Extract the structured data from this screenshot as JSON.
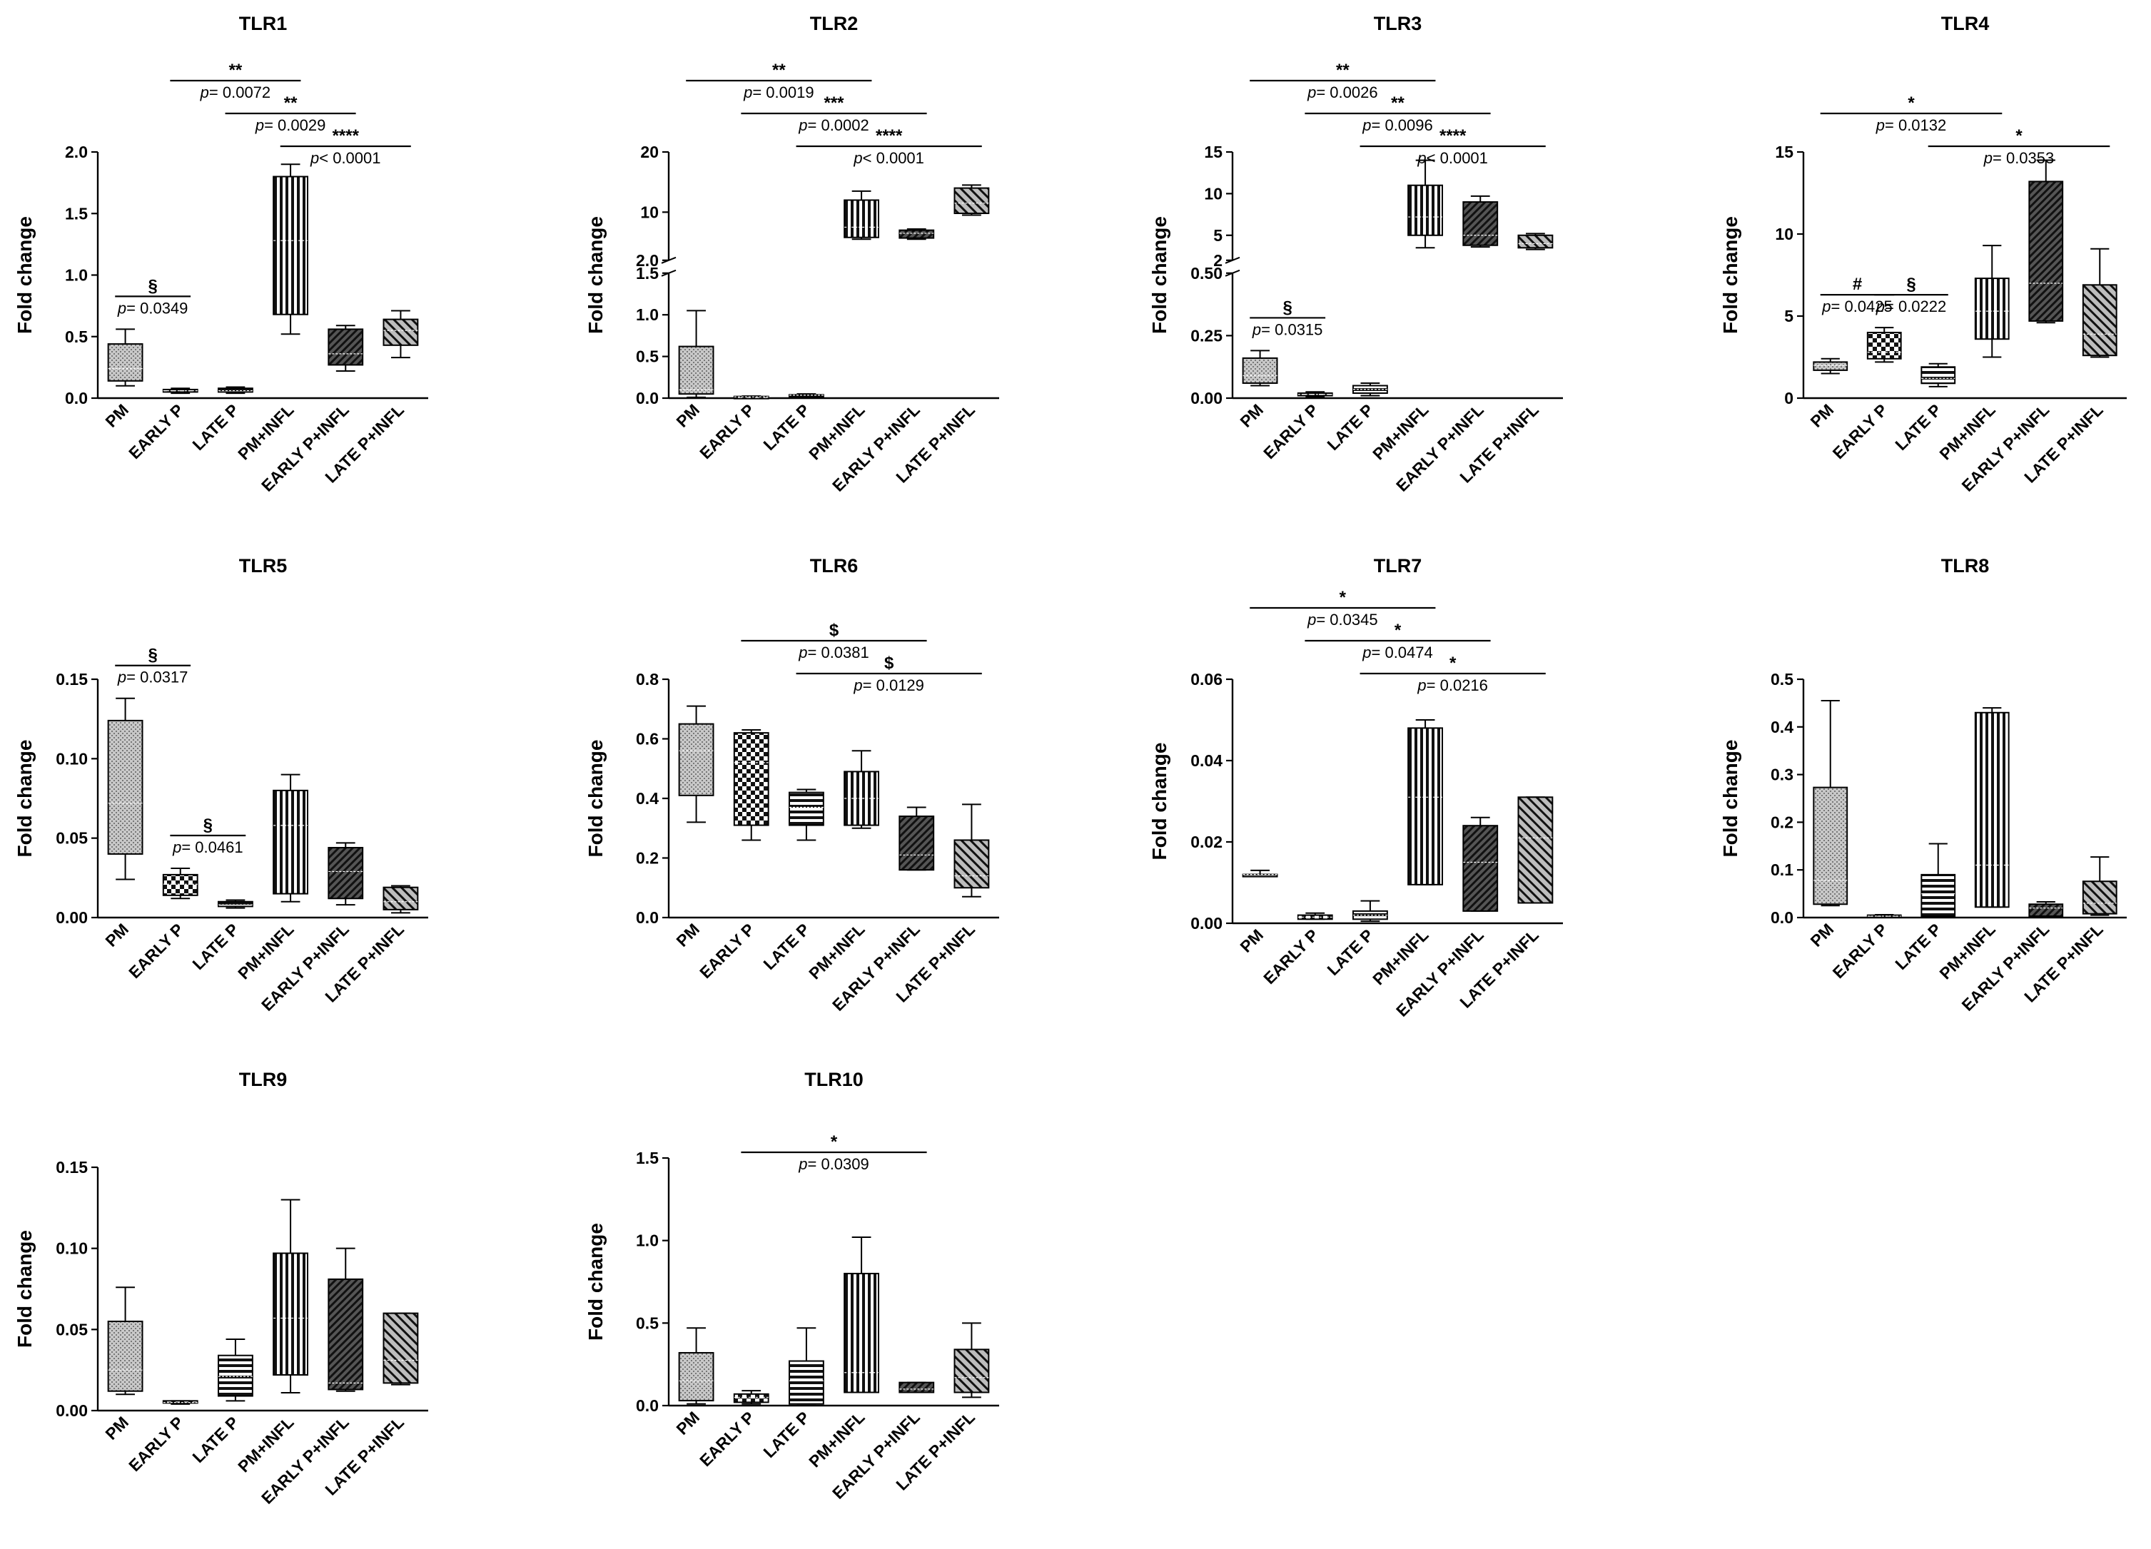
{
  "figure": {
    "y_axis_label": "Fold change",
    "p_prefix": "p"
  },
  "colors": {
    "ink": "#000000",
    "box_fill_light": "#c8c8c8",
    "box_fill_dark": "#555555"
  },
  "chart_data": [
    {
      "id": "TLR1",
      "type": "box",
      "title": "TLR1",
      "ylabel": "Fold change",
      "ylim": [
        0,
        2.0
      ],
      "yticks": [
        "0.0",
        "0.5",
        "1.0",
        "1.5",
        "2.0"
      ],
      "categories": [
        "PM",
        "EARLY P",
        "LATE P",
        "PM+INFL",
        "EARLY P+INFL",
        "LATE P+INFL"
      ],
      "boxes": [
        {
          "min": 0.1,
          "q1": 0.14,
          "median": 0.24,
          "q3": 0.44,
          "max": 0.56
        },
        {
          "min": 0.04,
          "q1": 0.05,
          "median": 0.06,
          "q3": 0.07,
          "max": 0.08
        },
        {
          "min": 0.04,
          "q1": 0.05,
          "median": 0.06,
          "q3": 0.08,
          "max": 0.09
        },
        {
          "min": 0.52,
          "q1": 0.68,
          "median": 1.28,
          "q3": 1.8,
          "max": 1.9
        },
        {
          "min": 0.22,
          "q1": 0.27,
          "median": 0.36,
          "q3": 0.56,
          "max": 0.59
        },
        {
          "min": 0.33,
          "q1": 0.43,
          "median": 0.55,
          "q3": 0.64,
          "max": 0.71
        }
      ],
      "comparisons": [
        {
          "from": 0,
          "to": 1,
          "symbol": "§",
          "p": "= 0.0349"
        },
        {
          "from": 1,
          "to": 3,
          "symbol": "**",
          "p": "= 0.0072"
        },
        {
          "from": 2,
          "to": 4,
          "symbol": "**",
          "p": "= 0.0029"
        },
        {
          "from": 3,
          "to": 5,
          "symbol": "****",
          "p": "< 0.0001"
        }
      ]
    },
    {
      "id": "TLR2",
      "type": "box",
      "title": "TLR2",
      "ylabel": "Fold change",
      "broken_axis": true,
      "ylim_lower": [
        0,
        1.5
      ],
      "yticks_lower": [
        "0.0",
        "0.5",
        "1.0",
        "1.5"
      ],
      "ylim_upper": [
        2.0,
        20
      ],
      "yticks_upper": [
        "2.0",
        "10",
        "20"
      ],
      "categories": [
        "PM",
        "EARLY P",
        "LATE P",
        "PM+INFL",
        "EARLY P+INFL",
        "LATE P+INFL"
      ],
      "boxes": [
        {
          "min": 0.01,
          "q1": 0.05,
          "median": 0.1,
          "q3": 0.62,
          "max": 1.05
        },
        {
          "min": 0.005,
          "q1": 0.01,
          "median": 0.015,
          "q3": 0.02,
          "max": 0.025
        },
        {
          "min": 0.02,
          "q1": 0.03,
          "median": 0.035,
          "q3": 0.04,
          "max": 0.05
        },
        {
          "min": 5.5,
          "q1": 5.8,
          "median": 7.5,
          "q3": 12.0,
          "max": 13.5
        },
        {
          "min": 5.5,
          "q1": 5.7,
          "median": 6.5,
          "q3": 7.0,
          "max": 7.2
        },
        {
          "min": 9.5,
          "q1": 9.8,
          "median": 11.5,
          "q3": 14.0,
          "max": 14.5
        }
      ],
      "comparisons": [
        {
          "from": 0,
          "to": 3,
          "symbol": "**",
          "p": "= 0.0019"
        },
        {
          "from": 1,
          "to": 4,
          "symbol": "***",
          "p": "= 0.0002"
        },
        {
          "from": 2,
          "to": 5,
          "symbol": "****",
          "p": "< 0.0001"
        }
      ]
    },
    {
      "id": "TLR3",
      "type": "box",
      "title": "TLR3",
      "ylabel": "Fold change",
      "broken_axis": true,
      "ylim_lower": [
        0,
        0.5
      ],
      "yticks_lower": [
        "0.00",
        "0.25",
        "0.50"
      ],
      "ylim_upper": [
        2,
        15
      ],
      "yticks_upper": [
        "2",
        "5",
        "10",
        "15"
      ],
      "categories": [
        "PM",
        "EARLY P",
        "LATE P",
        "PM+INFL",
        "EARLY P+INFL",
        "LATE P+INFL"
      ],
      "boxes": [
        {
          "min": 0.05,
          "q1": 0.06,
          "median": 0.09,
          "q3": 0.16,
          "max": 0.19
        },
        {
          "min": 0.005,
          "q1": 0.01,
          "median": 0.015,
          "q3": 0.02,
          "max": 0.025
        },
        {
          "min": 0.01,
          "q1": 0.02,
          "median": 0.035,
          "q3": 0.05,
          "max": 0.06
        },
        {
          "min": 3.5,
          "q1": 5.0,
          "median": 7.2,
          "q3": 11.0,
          "max": 14.0
        },
        {
          "min": 3.6,
          "q1": 3.8,
          "median": 5.0,
          "q3": 9.0,
          "max": 9.7
        },
        {
          "min": 3.3,
          "q1": 3.5,
          "median": 4.0,
          "q3": 5.0,
          "max": 5.2
        }
      ],
      "comparisons": [
        {
          "from": 0,
          "to": 1,
          "symbol": "§",
          "p": "= 0.0315"
        },
        {
          "from": 0,
          "to": 3,
          "symbol": "**",
          "p": "= 0.0026"
        },
        {
          "from": 1,
          "to": 4,
          "symbol": "**",
          "p": "= 0.0096"
        },
        {
          "from": 2,
          "to": 5,
          "symbol": "****",
          "p": "< 0.0001"
        }
      ]
    },
    {
      "id": "TLR4",
      "type": "box",
      "title": "TLR4",
      "ylabel": "Fold change",
      "ylim": [
        0,
        15
      ],
      "yticks": [
        "0",
        "5",
        "10",
        "15"
      ],
      "categories": [
        "PM",
        "EARLY P",
        "LATE P",
        "PM+INFL",
        "EARLY P+INFL",
        "LATE P+INFL"
      ],
      "boxes": [
        {
          "min": 1.5,
          "q1": 1.7,
          "median": 2.0,
          "q3": 2.2,
          "max": 2.4
        },
        {
          "min": 2.2,
          "q1": 2.4,
          "median": 2.8,
          "q3": 4.0,
          "max": 4.3
        },
        {
          "min": 0.7,
          "q1": 0.9,
          "median": 1.2,
          "q3": 1.9,
          "max": 2.1
        },
        {
          "min": 2.5,
          "q1": 3.6,
          "median": 5.3,
          "q3": 7.3,
          "max": 9.3
        },
        {
          "min": 4.6,
          "q1": 4.7,
          "median": 7.0,
          "q3": 13.2,
          "max": 14.5
        },
        {
          "min": 2.5,
          "q1": 2.6,
          "median": 3.9,
          "q3": 6.9,
          "max": 9.1
        }
      ],
      "comparisons": [
        {
          "from": 0,
          "to": 1,
          "symbol": "#",
          "p": "= 0.0425"
        },
        {
          "from": 1,
          "to": 2,
          "symbol": "§",
          "p": "= 0.0222"
        },
        {
          "from": 0,
          "to": 3,
          "symbol": "*",
          "p": "= 0.0132"
        },
        {
          "from": 2,
          "to": 5,
          "symbol": "*",
          "p": "= 0.0353"
        }
      ]
    },
    {
      "id": "TLR5",
      "type": "box",
      "title": "TLR5",
      "ylabel": "Fold change",
      "ylim": [
        0,
        0.15
      ],
      "yticks": [
        "0.00",
        "0.05",
        "0.10",
        "0.15"
      ],
      "categories": [
        "PM",
        "EARLY P",
        "LATE P",
        "PM+INFL",
        "EARLY P+INFL",
        "LATE P+INFL"
      ],
      "boxes": [
        {
          "min": 0.024,
          "q1": 0.04,
          "median": 0.072,
          "q3": 0.124,
          "max": 0.138
        },
        {
          "min": 0.012,
          "q1": 0.014,
          "median": 0.021,
          "q3": 0.027,
          "max": 0.031
        },
        {
          "min": 0.006,
          "q1": 0.007,
          "median": 0.008,
          "q3": 0.01,
          "max": 0.011
        },
        {
          "min": 0.01,
          "q1": 0.015,
          "median": 0.058,
          "q3": 0.08,
          "max": 0.09
        },
        {
          "min": 0.008,
          "q1": 0.012,
          "median": 0.029,
          "q3": 0.044,
          "max": 0.047
        },
        {
          "min": 0.003,
          "q1": 0.005,
          "median": 0.01,
          "q3": 0.019,
          "max": 0.02
        }
      ],
      "comparisons": [
        {
          "from": 0,
          "to": 1,
          "symbol": "§",
          "p": "= 0.0317"
        },
        {
          "from": 1,
          "to": 2,
          "symbol": "§",
          "p": "= 0.0461"
        }
      ]
    },
    {
      "id": "TLR6",
      "type": "box",
      "title": "TLR6",
      "ylabel": "Fold change",
      "ylim": [
        0,
        0.8
      ],
      "yticks": [
        "0.0",
        "0.2",
        "0.4",
        "0.6",
        "0.8"
      ],
      "categories": [
        "PM",
        "EARLY P",
        "LATE P",
        "PM+INFL",
        "EARLY P+INFL",
        "LATE P+INFL"
      ],
      "boxes": [
        {
          "min": 0.32,
          "q1": 0.41,
          "median": 0.56,
          "q3": 0.65,
          "max": 0.71
        },
        {
          "min": 0.26,
          "q1": 0.31,
          "median": 0.52,
          "q3": 0.62,
          "max": 0.63
        },
        {
          "min": 0.26,
          "q1": 0.31,
          "median": 0.37,
          "q3": 0.42,
          "max": 0.43
        },
        {
          "min": 0.3,
          "q1": 0.31,
          "median": 0.4,
          "q3": 0.49,
          "max": 0.56
        },
        {
          "min": 0.16,
          "q1": 0.16,
          "median": 0.21,
          "q3": 0.34,
          "max": 0.37
        },
        {
          "min": 0.07,
          "q1": 0.1,
          "median": 0.14,
          "q3": 0.26,
          "max": 0.38
        }
      ],
      "comparisons": [
        {
          "from": 1,
          "to": 4,
          "symbol": "$",
          "p": "= 0.0381"
        },
        {
          "from": 2,
          "to": 5,
          "symbol": "$",
          "p": "= 0.0129"
        }
      ]
    },
    {
      "id": "TLR7",
      "type": "box",
      "title": "TLR7",
      "ylabel": "Fold change",
      "ylim": [
        0,
        0.06
      ],
      "yticks": [
        "0.00",
        "0.02",
        "0.04",
        "0.06"
      ],
      "categories": [
        "PM",
        "EARLY P",
        "LATE P",
        "PM+INFL",
        "EARLY P+INFL",
        "LATE P+INFL"
      ],
      "boxes": [
        {
          "min": 0.012,
          "q1": 0.012,
          "median": 0.012,
          "q3": 0.012,
          "max": 0.013
        },
        {
          "min": 0.001,
          "q1": 0.001,
          "median": 0.0015,
          "q3": 0.002,
          "max": 0.0025
        },
        {
          "min": 0.0005,
          "q1": 0.001,
          "median": 0.002,
          "q3": 0.003,
          "max": 0.0055
        },
        {
          "min": 0.0095,
          "q1": 0.0095,
          "median": 0.031,
          "q3": 0.048,
          "max": 0.05
        },
        {
          "min": 0.003,
          "q1": 0.003,
          "median": 0.015,
          "q3": 0.024,
          "max": 0.026
        },
        {
          "min": 0.005,
          "q1": 0.005,
          "median": 0.021,
          "q3": 0.031,
          "max": 0.031
        }
      ],
      "comparisons": [
        {
          "from": 0,
          "to": 3,
          "symbol": "*",
          "p": "= 0.0345"
        },
        {
          "from": 1,
          "to": 4,
          "symbol": "*",
          "p": "= 0.0474"
        },
        {
          "from": 2,
          "to": 5,
          "symbol": "*",
          "p": "= 0.0216"
        }
      ]
    },
    {
      "id": "TLR8",
      "type": "box",
      "title": "TLR8",
      "ylabel": "Fold change",
      "ylim": [
        0,
        0.5
      ],
      "yticks": [
        "0.0",
        "0.1",
        "0.2",
        "0.3",
        "0.4",
        "0.5"
      ],
      "categories": [
        "PM",
        "EARLY P",
        "LATE P",
        "PM+INFL",
        "EARLY P+INFL",
        "LATE P+INFL"
      ],
      "boxes": [
        {
          "min": 0.025,
          "q1": 0.028,
          "median": 0.078,
          "q3": 0.273,
          "max": 0.455
        },
        {
          "min": 0.001,
          "q1": 0.002,
          "median": 0.003,
          "q3": 0.005,
          "max": 0.006
        },
        {
          "min": 0.0,
          "q1": 0.003,
          "median": 0.05,
          "q3": 0.09,
          "max": 0.155
        },
        {
          "min": 0.022,
          "q1": 0.022,
          "median": 0.11,
          "q3": 0.43,
          "max": 0.44
        },
        {
          "min": 0.003,
          "q1": 0.003,
          "median": 0.02,
          "q3": 0.028,
          "max": 0.033
        },
        {
          "min": 0.005,
          "q1": 0.008,
          "median": 0.03,
          "q3": 0.076,
          "max": 0.127
        }
      ],
      "comparisons": []
    },
    {
      "id": "TLR9",
      "type": "box",
      "title": "TLR9",
      "ylabel": "Fold change",
      "ylim": [
        0,
        0.15
      ],
      "yticks": [
        "0.00",
        "0.05",
        "0.10",
        "0.15"
      ],
      "categories": [
        "PM",
        "EARLY P",
        "LATE P",
        "PM+INFL",
        "EARLY P+INFL",
        "LATE P+INFL"
      ],
      "boxes": [
        {
          "min": 0.01,
          "q1": 0.012,
          "median": 0.025,
          "q3": 0.055,
          "max": 0.076
        },
        {
          "min": 0.004,
          "q1": 0.005,
          "median": 0.005,
          "q3": 0.006,
          "max": 0.006
        },
        {
          "min": 0.006,
          "q1": 0.009,
          "median": 0.021,
          "q3": 0.034,
          "max": 0.044
        },
        {
          "min": 0.011,
          "q1": 0.022,
          "median": 0.057,
          "q3": 0.097,
          "max": 0.13
        },
        {
          "min": 0.012,
          "q1": 0.013,
          "median": 0.017,
          "q3": 0.081,
          "max": 0.1
        },
        {
          "min": 0.016,
          "q1": 0.017,
          "median": 0.031,
          "q3": 0.06,
          "max": 0.06
        }
      ],
      "comparisons": []
    },
    {
      "id": "TLR10",
      "type": "box",
      "title": "TLR10",
      "ylabel": "Fold change",
      "ylim": [
        0,
        1.5
      ],
      "yticks": [
        "0.0",
        "0.5",
        "1.0",
        "1.5"
      ],
      "categories": [
        "PM",
        "EARLY P",
        "LATE P",
        "PM+INFL",
        "EARLY P+INFL",
        "LATE P+INFL"
      ],
      "boxes": [
        {
          "min": 0.01,
          "q1": 0.03,
          "median": 0.15,
          "q3": 0.32,
          "max": 0.47
        },
        {
          "min": 0.01,
          "q1": 0.02,
          "median": 0.05,
          "q3": 0.07,
          "max": 0.09
        },
        {
          "min": 0.01,
          "q1": 0.01,
          "median": 0.15,
          "q3": 0.27,
          "max": 0.47
        },
        {
          "min": 0.08,
          "q1": 0.08,
          "median": 0.2,
          "q3": 0.8,
          "max": 1.02
        },
        {
          "min": 0.08,
          "q1": 0.08,
          "median": 0.1,
          "q3": 0.14,
          "max": 0.14
        },
        {
          "min": 0.05,
          "q1": 0.08,
          "median": 0.17,
          "q3": 0.34,
          "max": 0.5
        }
      ],
      "comparisons": [
        {
          "from": 1,
          "to": 4,
          "symbol": "*",
          "p": "= 0.0309"
        }
      ]
    }
  ]
}
